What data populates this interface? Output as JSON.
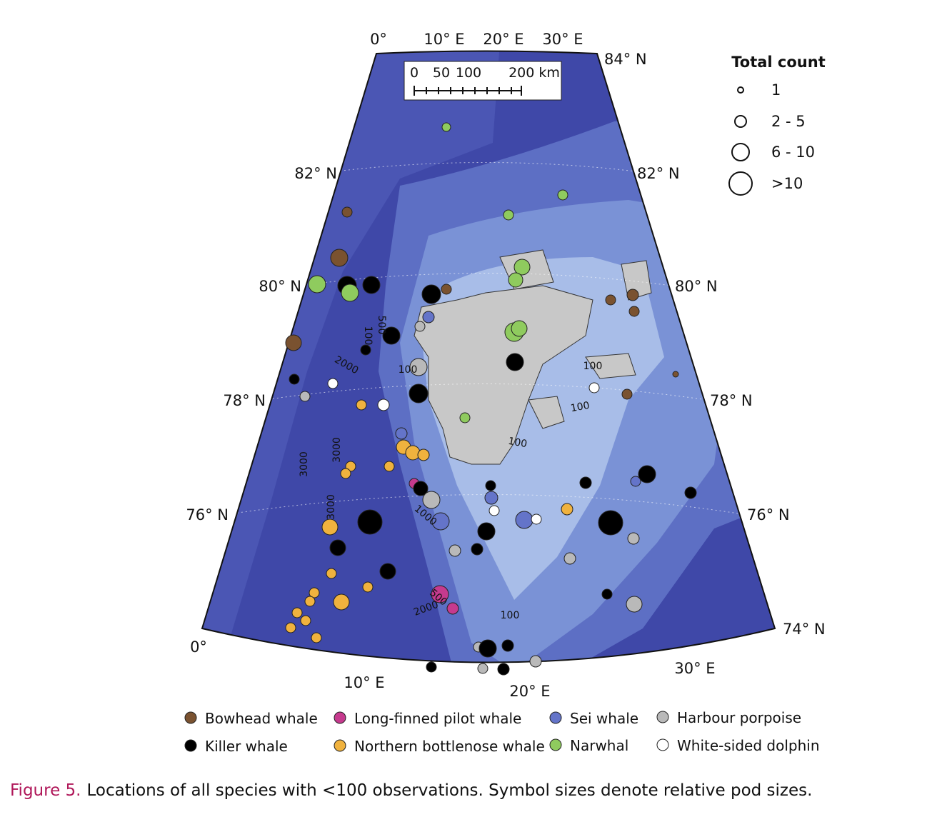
{
  "map": {
    "top_labels": [
      "0°",
      "10° E",
      "20° E",
      "30° E"
    ],
    "right_labels": [
      "84° N",
      "82° N",
      "80° N",
      "78° N",
      "76° N",
      "74° N"
    ],
    "left_labels": [
      "82° N",
      "80° N",
      "78° N",
      "76° N",
      "0°"
    ],
    "bottom_labels": [
      "10° E",
      "20° E",
      "30° E"
    ],
    "scale_bar": [
      "0",
      "50",
      "100",
      "200 km"
    ],
    "contour_labels": [
      "500",
      "100",
      "2000",
      "100",
      "100",
      "100",
      "3000",
      "3000",
      "3000",
      "100",
      "1000",
      "500",
      "2000",
      "100"
    ]
  },
  "size_legend": {
    "title": "Total count",
    "items": [
      "1",
      "2 - 5",
      "6 - 10",
      ">10"
    ]
  },
  "species_legend": [
    "Bowhead whale",
    "Killer whale",
    "Long-finned pilot whale",
    "Northern bottlenose whale",
    "Sei whale",
    "Narwhal",
    "Harbour porpoise",
    "White-sided dolphin"
  ],
  "caption": {
    "label": "Figure 5.",
    "text": "Locations of all species with <100 observations. Symbol sizes denote relative pod sizes."
  }
}
